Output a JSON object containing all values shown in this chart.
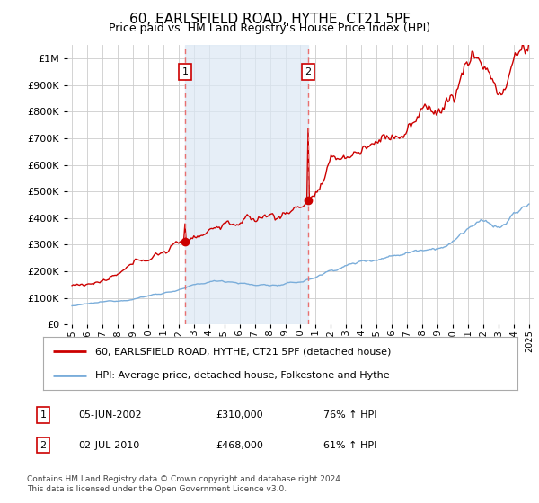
{
  "title": "60, EARLSFIELD ROAD, HYTHE, CT21 5PF",
  "subtitle": "Price paid vs. HM Land Registry's House Price Index (HPI)",
  "ytick_values": [
    0,
    100000,
    200000,
    300000,
    400000,
    500000,
    600000,
    700000,
    800000,
    900000,
    1000000
  ],
  "ylim": [
    0,
    1050000
  ],
  "background_color": "#ffffff",
  "plot_bg_color": "#ffffff",
  "grid_color": "#cccccc",
  "shade_color": "#dce8f5",
  "sale1_date": "05-JUN-2002",
  "sale1_price": 310000,
  "sale1_year": 2002.42,
  "sale1_hpi_pct": "76%",
  "sale2_date": "02-JUL-2010",
  "sale2_price": 468000,
  "sale2_year": 2010.5,
  "sale2_hpi_pct": "61%",
  "legend_label_red": "60, EARLSFIELD ROAD, HYTHE, CT21 5PF (detached house)",
  "legend_label_blue": "HPI: Average price, detached house, Folkestone and Hythe",
  "footer": "Contains HM Land Registry data © Crown copyright and database right 2024.\nThis data is licensed under the Open Government Licence v3.0.",
  "red_color": "#cc0000",
  "blue_color": "#7aadda",
  "vline_color": "#e87070",
  "note_box_color": "#cc0000",
  "title_fontsize": 11,
  "subtitle_fontsize": 9,
  "tick_fontsize": 8,
  "xtick_fontsize": 7
}
